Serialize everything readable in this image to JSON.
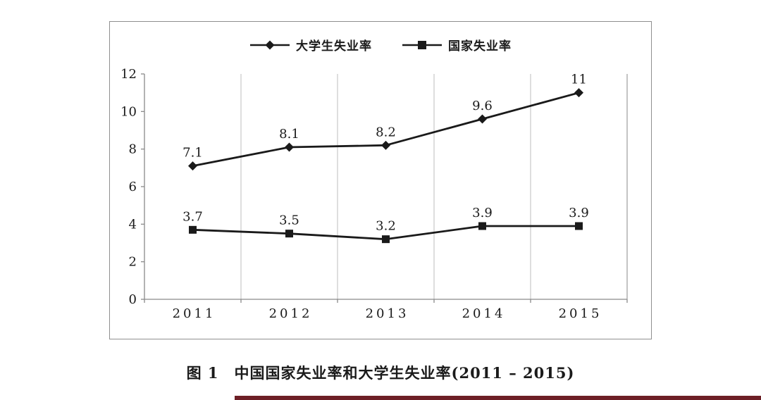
{
  "page": {
    "caption": "图 1　中国国家失业率和大学生失业率(2011 – 2015)"
  },
  "legend": [
    {
      "label": "大学生失业率",
      "marker": "diamond"
    },
    {
      "label": "国家失业率",
      "marker": "square"
    }
  ],
  "chart_data": {
    "type": "line",
    "categories": [
      "2011",
      "2012",
      "2013",
      "2014",
      "2015"
    ],
    "series": [
      {
        "name": "大学生失业率",
        "marker": "diamond",
        "values": [
          7.1,
          8.1,
          8.2,
          9.6,
          11
        ]
      },
      {
        "name": "国家失业率",
        "marker": "square",
        "values": [
          3.7,
          3.5,
          3.2,
          3.9,
          3.9
        ]
      }
    ],
    "y_ticks": [
      0,
      2,
      4,
      6,
      8,
      10,
      12
    ],
    "ylim": [
      0,
      12
    ],
    "grid": "vertical-only",
    "data_labels": true,
    "legend_position": "top-center",
    "title": "",
    "xlabel": "",
    "ylabel": ""
  },
  "colors": {
    "line": "#1a1a1a",
    "axis": "#8a8a8a",
    "grid": "#bdbdbd",
    "text": "#1a1a1a",
    "box_border": "#8f8f8f",
    "accent_strip": "#6d1f26"
  }
}
